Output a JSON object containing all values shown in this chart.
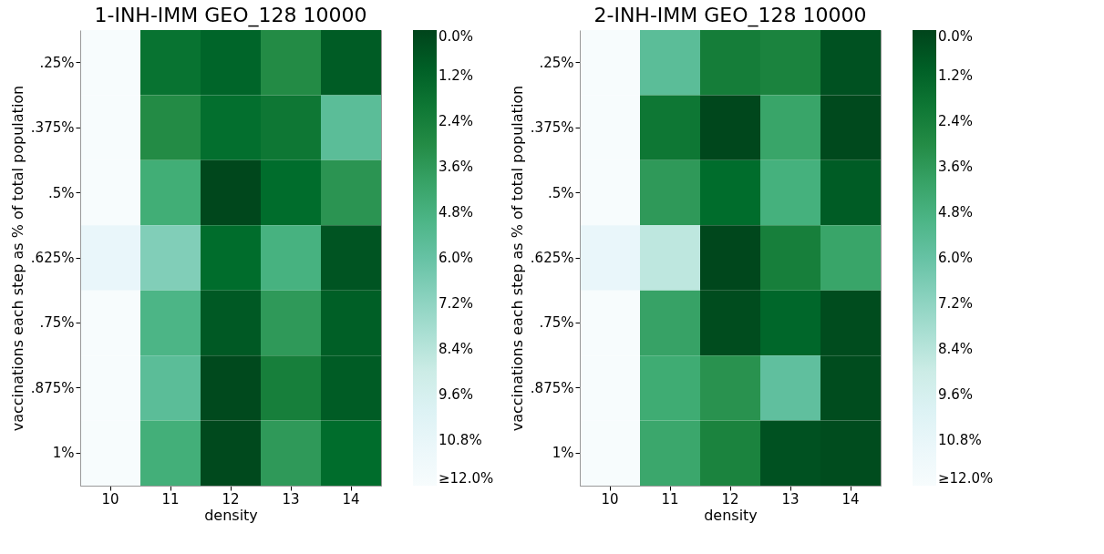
{
  "chart_data": [
    {
      "type": "heatmap",
      "title": "1-INH-IMM GEO_128 10000",
      "xlabel": "density",
      "ylabel": "vaccinations each step as % of total population",
      "categories": [
        "10",
        "11",
        "12",
        "13",
        "14"
      ],
      "y_categories": [
        ".25%",
        ".375%",
        ".5%",
        ".625%",
        ".75%",
        ".875%",
        "1%"
      ],
      "cells": [
        [
          12,
          1.8,
          1.2,
          3.0,
          0.9
        ],
        [
          12,
          3.0,
          1.6,
          2.0,
          5.6
        ],
        [
          12,
          4.5,
          0.1,
          1.5,
          3.4
        ],
        [
          10.8,
          6.8,
          1.5,
          4.8,
          0.6
        ],
        [
          12,
          5.0,
          0.8,
          3.6,
          1.0
        ],
        [
          12,
          5.6,
          0.2,
          2.4,
          0.9
        ],
        [
          12,
          4.6,
          0.2,
          3.6,
          1.5
        ]
      ],
      "clim": [
        0,
        12
      ],
      "cticks": [
        {
          "value": 0,
          "label": "0.0%"
        },
        {
          "value": 1.2,
          "label": "1.2%"
        },
        {
          "value": 2.4,
          "label": "2.4%"
        },
        {
          "value": 3.6,
          "label": "3.6%"
        },
        {
          "value": 4.8,
          "label": "4.8%"
        },
        {
          "value": 6,
          "label": "6.0%"
        },
        {
          "value": 7.2,
          "label": "7.2%"
        },
        {
          "value": 8.4,
          "label": "8.4%"
        },
        {
          "value": 9.6,
          "label": "9.6%"
        },
        {
          "value": 10.8,
          "label": "10.8%"
        },
        {
          "value": 12,
          "label": "≥12.0%"
        }
      ]
    },
    {
      "type": "heatmap",
      "title": "2-INH-IMM GEO_128 10000",
      "xlabel": "density",
      "ylabel": "vaccinations each step as % of total population",
      "categories": [
        "10",
        "11",
        "12",
        "13",
        "14"
      ],
      "y_categories": [
        ".25%",
        ".375%",
        ".5%",
        ".625%",
        ".75%",
        ".875%",
        "1%"
      ],
      "cells": [
        [
          12,
          5.6,
          2.3,
          2.6,
          0.5
        ],
        [
          12,
          2.0,
          0.1,
          4.1,
          0.2
        ],
        [
          12,
          3.6,
          1.5,
          4.7,
          0.9
        ],
        [
          10.8,
          8.6,
          0.1,
          2.4,
          4.1
        ],
        [
          12,
          4.0,
          0.3,
          1.3,
          0.3
        ],
        [
          12,
          4.4,
          3.3,
          5.8,
          0.3
        ],
        [
          12,
          4.2,
          2.6,
          0.5,
          0.3
        ]
      ],
      "clim": [
        0,
        12
      ],
      "cticks": [
        {
          "value": 0,
          "label": "0.0%"
        },
        {
          "value": 1.2,
          "label": "1.2%"
        },
        {
          "value": 2.4,
          "label": "2.4%"
        },
        {
          "value": 3.6,
          "label": "3.6%"
        },
        {
          "value": 4.8,
          "label": "4.8%"
        },
        {
          "value": 6,
          "label": "6.0%"
        },
        {
          "value": 7.2,
          "label": "7.2%"
        },
        {
          "value": 8.4,
          "label": "8.4%"
        },
        {
          "value": 9.6,
          "label": "9.6%"
        },
        {
          "value": 10.8,
          "label": "10.8%"
        },
        {
          "value": 12,
          "label": "≥12.0%"
        }
      ]
    }
  ]
}
